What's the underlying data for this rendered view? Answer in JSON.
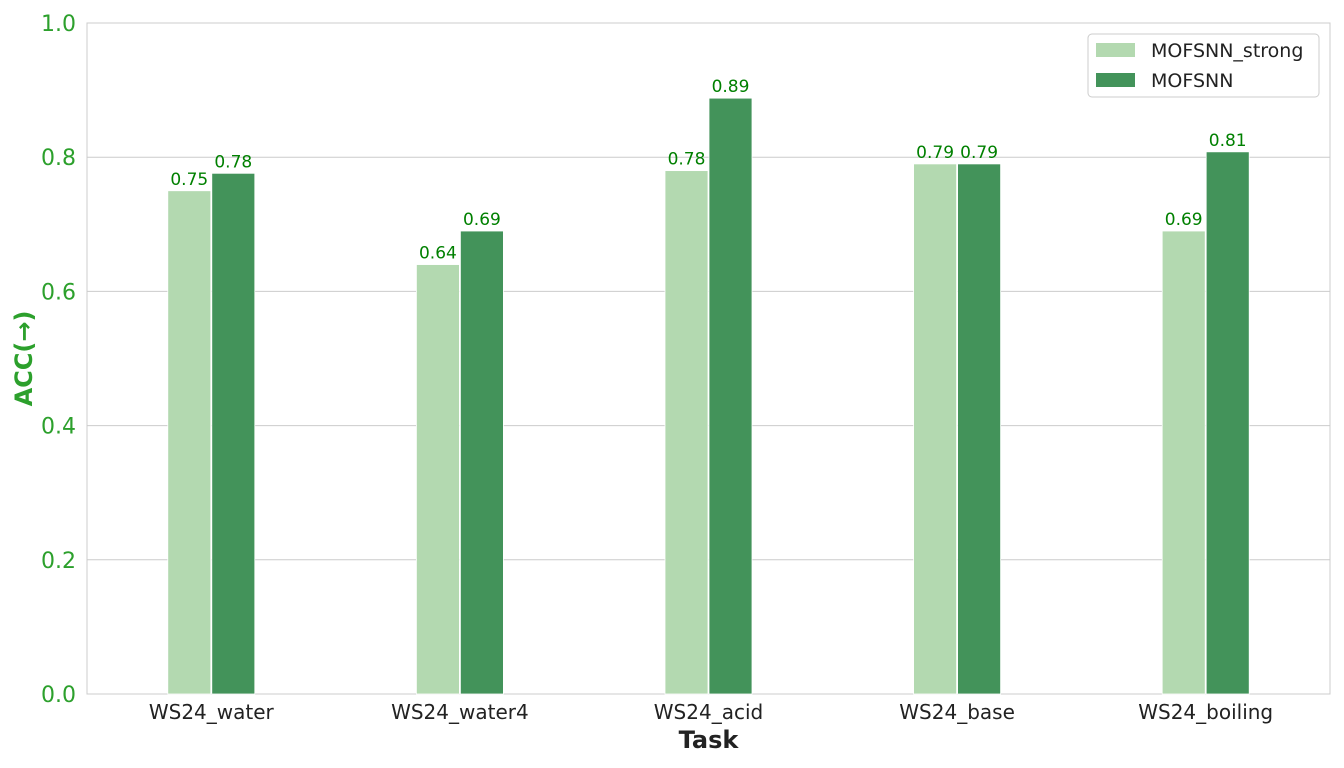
{
  "chart_data": {
    "type": "bar",
    "categories": [
      "WS24_water",
      "WS24_water4",
      "WS24_acid",
      "WS24_base",
      "WS24_boiling"
    ],
    "series": [
      {
        "name": "MOFSNN_strong",
        "values": [
          0.75,
          0.64,
          0.78,
          0.79,
          0.69
        ],
        "labels": [
          "0.75",
          "0.64",
          "0.78",
          "0.79",
          "0.69"
        ],
        "color": "#b3d9b0"
      },
      {
        "name": "MOFSNN",
        "values": [
          0.776,
          0.69,
          0.888,
          0.79,
          0.808
        ],
        "labels": [
          "0.78",
          "0.69",
          "0.89",
          "0.79",
          "0.81"
        ],
        "color": "#43935a"
      }
    ],
    "title": "",
    "xlabel": "Task",
    "ylabel": "ACC(→)",
    "ylim": [
      0,
      1.0
    ],
    "yticks": [
      "0.0",
      "0.2",
      "0.4",
      "0.6",
      "0.8",
      "1.0"
    ],
    "grid": "horizontal",
    "legend_position": "top-right",
    "colors": {
      "tick_text": "#2ca02c",
      "data_label": "#008000",
      "grid": "#cccccc",
      "axis_label_x": "#222222",
      "axis_label_y": "#2ca02c"
    }
  }
}
